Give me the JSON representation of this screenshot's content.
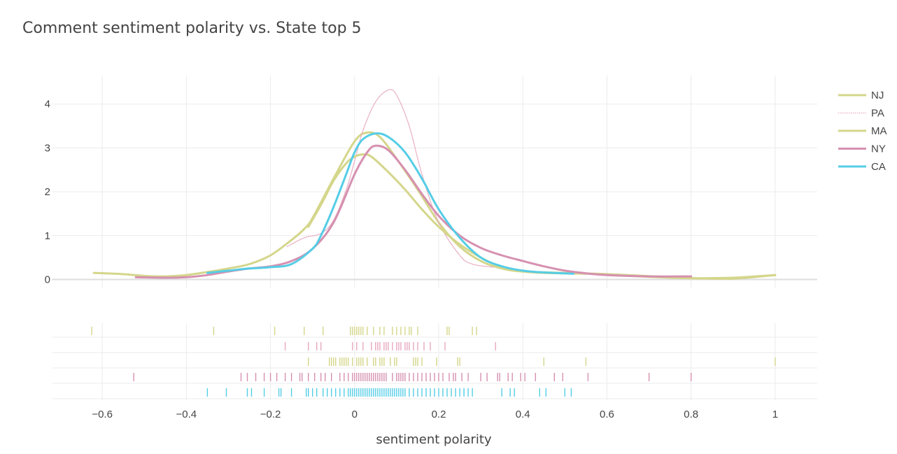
{
  "chart_data": {
    "type": "line",
    "title": "Comment sentiment polarity vs. State top 5",
    "xlabel": "sentiment polarity",
    "ylabel": "",
    "xlim": [
      -0.72,
      1.1
    ],
    "ylim": [
      -0.2,
      4.65
    ],
    "x_ticks": [
      -0.6,
      -0.4,
      -0.2,
      0,
      0.2,
      0.4,
      0.6,
      0.8,
      1
    ],
    "x_tick_labels": [
      "−0.6",
      "−0.4",
      "−0.2",
      "0",
      "0.2",
      "0.4",
      "0.6",
      "0.8",
      "1"
    ],
    "y_ticks": [
      0,
      1,
      2,
      3,
      4
    ],
    "y_tick_labels": [
      "0",
      "1",
      "2",
      "3",
      "4"
    ],
    "grid": true,
    "legend_position": "top-right",
    "series": [
      {
        "name": "NJ",
        "color": "#d4d68a",
        "style": "solid",
        "x": [
          -0.62,
          -0.55,
          -0.5,
          -0.45,
          -0.4,
          -0.35,
          -0.3,
          -0.25,
          -0.2,
          -0.15,
          -0.12,
          -0.1,
          -0.05,
          0,
          0.03,
          0.06,
          0.1,
          0.15,
          0.2,
          0.25,
          0.3,
          0.35,
          0.4,
          0.5,
          0.6,
          0.7,
          0.8,
          0.9,
          1.0
        ],
        "y": [
          0.15,
          0.12,
          0.08,
          0.07,
          0.1,
          0.17,
          0.25,
          0.35,
          0.55,
          0.9,
          1.15,
          1.4,
          2.3,
          3.15,
          3.35,
          3.25,
          2.75,
          2.05,
          1.3,
          0.75,
          0.42,
          0.25,
          0.18,
          0.15,
          0.12,
          0.06,
          0.03,
          0.04,
          0.1
        ]
      },
      {
        "name": "PA",
        "color": "#e7a8c0",
        "style": "dotted",
        "x": [
          -0.16,
          -0.12,
          -0.08,
          -0.05,
          -0.02,
          0,
          0.02,
          0.05,
          0.08,
          0.1,
          0.13,
          0.16,
          0.2,
          0.25,
          0.28,
          0.33
        ],
        "y": [
          0.75,
          0.95,
          1.05,
          1.35,
          2.05,
          2.7,
          3.4,
          4.05,
          4.32,
          4.2,
          3.5,
          2.4,
          1.3,
          0.55,
          0.35,
          0.28
        ]
      },
      {
        "name": "MA",
        "color": "#d4d68a",
        "style": "solid",
        "x": [
          -0.11,
          -0.08,
          -0.05,
          -0.02,
          0,
          0.02,
          0.04,
          0.08,
          0.12,
          0.16,
          0.2,
          0.25,
          0.3,
          0.35,
          0.4,
          0.45,
          0.55,
          0.65,
          0.75,
          0.8,
          0.9,
          1.0
        ],
        "y": [
          1.2,
          1.7,
          2.25,
          2.65,
          2.8,
          2.85,
          2.8,
          2.45,
          2.05,
          1.6,
          1.2,
          0.8,
          0.5,
          0.28,
          0.18,
          0.15,
          0.13,
          0.1,
          0.05,
          0.03,
          0.02,
          0.1
        ]
      },
      {
        "name": "NY",
        "color": "#d690b0",
        "style": "solid",
        "x": [
          -0.52,
          -0.45,
          -0.4,
          -0.35,
          -0.3,
          -0.25,
          -0.2,
          -0.15,
          -0.1,
          -0.05,
          0,
          0.03,
          0.05,
          0.08,
          0.12,
          0.16,
          0.2,
          0.25,
          0.3,
          0.35,
          0.4,
          0.45,
          0.5,
          0.55,
          0.6,
          0.7,
          0.8
        ],
        "y": [
          0.05,
          0.04,
          0.05,
          0.1,
          0.18,
          0.25,
          0.3,
          0.42,
          0.7,
          1.3,
          2.4,
          2.9,
          3.05,
          2.95,
          2.5,
          1.95,
          1.45,
          1.0,
          0.72,
          0.55,
          0.42,
          0.3,
          0.2,
          0.14,
          0.1,
          0.07,
          0.07
        ]
      },
      {
        "name": "CA",
        "color": "#55cde6",
        "style": "solid",
        "x": [
          -0.35,
          -0.3,
          -0.25,
          -0.2,
          -0.15,
          -0.1,
          -0.08,
          -0.05,
          -0.02,
          0,
          0.02,
          0.05,
          0.08,
          0.12,
          0.16,
          0.2,
          0.25,
          0.3,
          0.35,
          0.4,
          0.45,
          0.52
        ],
        "y": [
          0.15,
          0.2,
          0.25,
          0.28,
          0.35,
          0.7,
          1.0,
          1.65,
          2.4,
          2.9,
          3.2,
          3.33,
          3.25,
          2.9,
          2.3,
          1.6,
          0.95,
          0.5,
          0.3,
          0.2,
          0.16,
          0.13
        ]
      }
    ],
    "rug": [
      {
        "name": "NJ",
        "color": "#d4d68a",
        "x": [
          -0.625,
          -0.335,
          -0.19,
          -0.12,
          -0.075,
          -0.01,
          -0.005,
          0.0,
          0.005,
          0.01,
          0.015,
          0.02,
          0.03,
          0.045,
          0.06,
          0.07,
          0.09,
          0.1,
          0.11,
          0.12,
          0.13,
          0.135,
          0.15,
          0.22,
          0.225,
          0.28,
          0.29
        ]
      },
      {
        "name": "PA",
        "color": "#e7a8c0",
        "x": [
          -0.165,
          -0.11,
          -0.09,
          -0.08,
          -0.005,
          0.005,
          0.02,
          0.04,
          0.05,
          0.055,
          0.06,
          0.07,
          0.075,
          0.08,
          0.09,
          0.1,
          0.105,
          0.11,
          0.12,
          0.125,
          0.13,
          0.14,
          0.15,
          0.165,
          0.18,
          0.215,
          0.335
        ]
      },
      {
        "name": "MA",
        "color": "#d4d68a",
        "x": [
          -0.11,
          -0.06,
          -0.055,
          -0.05,
          -0.045,
          -0.035,
          -0.03,
          -0.025,
          -0.02,
          -0.015,
          -0.005,
          0.005,
          0.01,
          0.015,
          0.02,
          0.03,
          0.045,
          0.05,
          0.06,
          0.065,
          0.07,
          0.085,
          0.095,
          0.1,
          0.14,
          0.145,
          0.15,
          0.16,
          0.195,
          0.245,
          0.25,
          0.45,
          0.55,
          1.0
        ]
      },
      {
        "name": "NY",
        "color": "#d690b0",
        "x": [
          -0.525,
          -0.27,
          -0.255,
          -0.235,
          -0.215,
          -0.2,
          -0.185,
          -0.165,
          -0.15,
          -0.13,
          -0.125,
          -0.11,
          -0.095,
          -0.08,
          -0.07,
          -0.055,
          -0.035,
          -0.025,
          -0.015,
          -0.005,
          0.0,
          0.005,
          0.01,
          0.015,
          0.02,
          0.025,
          0.03,
          0.035,
          0.04,
          0.045,
          0.05,
          0.055,
          0.06,
          0.065,
          0.07,
          0.075,
          0.09,
          0.1,
          0.105,
          0.11,
          0.115,
          0.12,
          0.13,
          0.14,
          0.15,
          0.16,
          0.17,
          0.18,
          0.19,
          0.2,
          0.21,
          0.225,
          0.235,
          0.24,
          0.255,
          0.27,
          0.3,
          0.315,
          0.34,
          0.345,
          0.365,
          0.375,
          0.395,
          0.405,
          0.43,
          0.475,
          0.495,
          0.555,
          0.7,
          0.8
        ]
      },
      {
        "name": "CA",
        "color": "#55cde6",
        "x": [
          -0.35,
          -0.305,
          -0.255,
          -0.245,
          -0.215,
          -0.18,
          -0.175,
          -0.15,
          -0.115,
          -0.11,
          -0.1,
          -0.09,
          -0.075,
          -0.065,
          -0.055,
          -0.045,
          -0.035,
          -0.025,
          -0.015,
          -0.01,
          -0.005,
          0.0,
          0.005,
          0.01,
          0.015,
          0.02,
          0.025,
          0.03,
          0.035,
          0.04,
          0.045,
          0.05,
          0.055,
          0.06,
          0.065,
          0.07,
          0.075,
          0.08,
          0.085,
          0.09,
          0.095,
          0.1,
          0.105,
          0.11,
          0.115,
          0.12,
          0.13,
          0.14,
          0.15,
          0.16,
          0.17,
          0.18,
          0.19,
          0.2,
          0.21,
          0.22,
          0.23,
          0.24,
          0.25,
          0.26,
          0.27,
          0.28,
          0.35,
          0.37,
          0.38,
          0.44,
          0.455,
          0.5,
          0.515
        ]
      }
    ]
  }
}
